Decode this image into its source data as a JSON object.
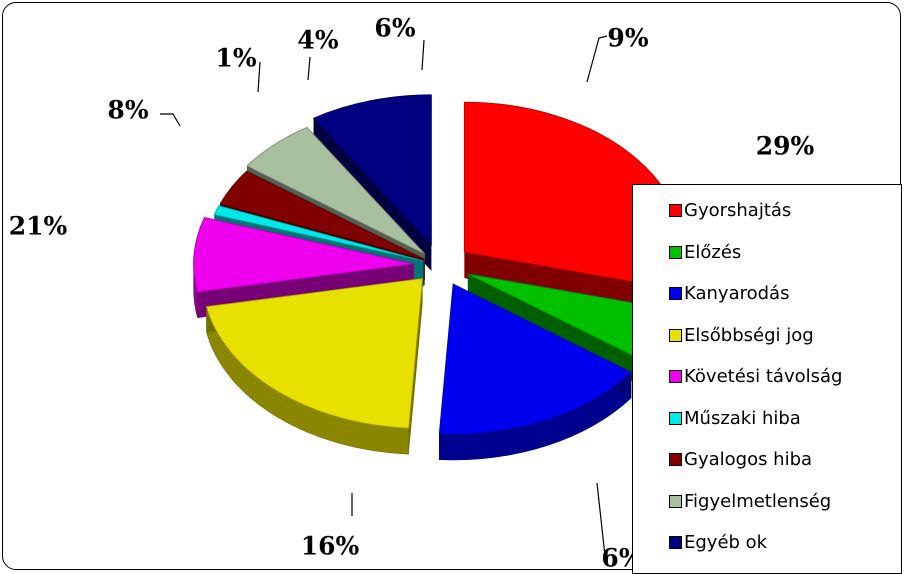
{
  "chart_data": {
    "type": "pie",
    "categories": [
      "Gyorshajtás",
      "Előzés",
      "Kanyarodás",
      "Elsőbbségi jog",
      "Követési távolság",
      "Műszaki hiba",
      "Gyalogos hiba",
      "Figyelmetlenség",
      "Egyéb ok"
    ],
    "values": [
      29,
      6,
      16,
      21,
      8,
      1,
      4,
      6,
      9
    ],
    "labels": [
      "29%",
      "6%",
      "16%",
      "21%",
      "8%",
      "1%",
      "4%",
      "6%",
      "9%"
    ],
    "colors": [
      "#ff0000",
      "#00c000",
      "#0000ee",
      "#e8e000",
      "#ee00ee",
      "#00e8e8",
      "#800000",
      "#a8c0a0",
      "#000080"
    ],
    "legend_placement": "right",
    "title": ""
  }
}
